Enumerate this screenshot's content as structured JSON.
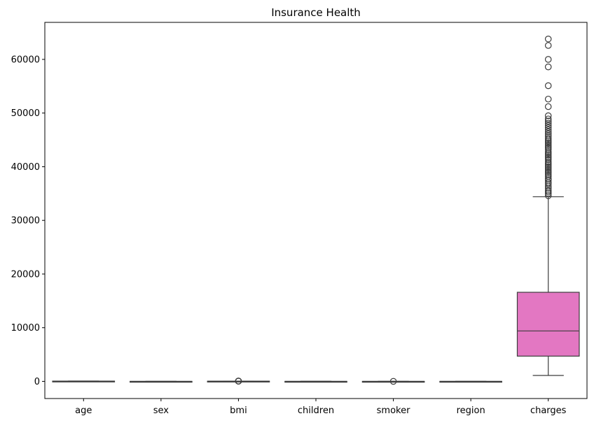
{
  "chart_data": {
    "type": "boxplot",
    "title": "Insurance Health",
    "xlabel": "",
    "ylabel": "",
    "ylim": [
      -3200,
      66900
    ],
    "yticks": [
      0,
      10000,
      20000,
      30000,
      40000,
      50000,
      60000
    ],
    "grid": false,
    "legend": "none",
    "categories": [
      "age",
      "sex",
      "bmi",
      "children",
      "smoker",
      "region",
      "charges"
    ],
    "boxes": [
      {
        "name": "age",
        "color": "#1f77b4",
        "whislo": 18,
        "q1": 27,
        "median": 39,
        "q3": 51,
        "whishi": 64,
        "fliers": []
      },
      {
        "name": "sex",
        "color": "#ff7f0e",
        "whislo": 0,
        "q1": 0,
        "median": 1,
        "q3": 1,
        "whishi": 1,
        "fliers": []
      },
      {
        "name": "bmi",
        "color": "#2ca02c",
        "whislo": 16,
        "q1": 26,
        "median": 30,
        "q3": 35,
        "whishi": 47,
        "fliers": [
          48,
          49,
          50,
          52,
          53
        ]
      },
      {
        "name": "children",
        "color": "#d62728",
        "whislo": 0,
        "q1": 0,
        "median": 1,
        "q3": 2,
        "whishi": 5,
        "fliers": []
      },
      {
        "name": "smoker",
        "color": "#9467bd",
        "whislo": 0,
        "q1": 0,
        "median": 0,
        "q3": 0,
        "whishi": 0,
        "fliers": [
          1
        ]
      },
      {
        "name": "region",
        "color": "#8c564b",
        "whislo": 0,
        "q1": 1,
        "median": 2,
        "q3": 2,
        "whishi": 3,
        "fliers": []
      },
      {
        "name": "charges",
        "color": "#e377c2",
        "whislo": 1100,
        "q1": 4700,
        "median": 9400,
        "q3": 16600,
        "whishi": 34400,
        "fliers": [
          34600,
          35000,
          35300,
          35600,
          36000,
          36400,
          36800,
          37100,
          37500,
          37800,
          38200,
          38500,
          38800,
          39100,
          39400,
          39700,
          40000,
          40300,
          40600,
          40900,
          41300,
          41600,
          41900,
          42200,
          42500,
          42800,
          43200,
          43500,
          43800,
          44100,
          44400,
          44700,
          45000,
          45300,
          45700,
          46100,
          46500,
          46900,
          47300,
          47700,
          48100,
          48500,
          48900,
          49500,
          51200,
          52600,
          55100,
          58600,
          60000,
          62600,
          63800
        ]
      }
    ]
  }
}
